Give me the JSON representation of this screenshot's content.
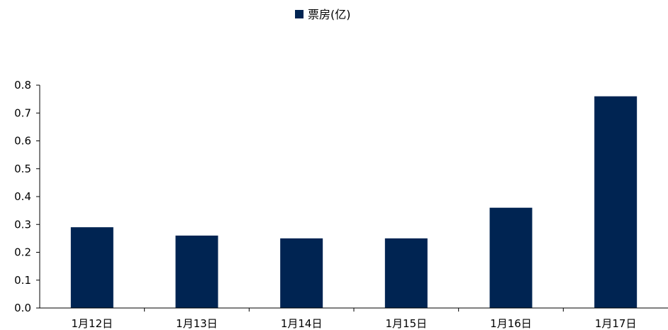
{
  "chart_data": {
    "type": "bar",
    "categories": [
      "1月12日",
      "1月13日",
      "1月14日",
      "1月15日",
      "1月16日",
      "1月17日"
    ],
    "series": [
      {
        "name": "票房(亿)",
        "values": [
          0.29,
          0.26,
          0.25,
          0.25,
          0.36,
          0.76
        ],
        "color": "#002452"
      }
    ],
    "ylim": [
      0,
      0.8
    ],
    "yticks": [
      "0.0",
      "0.1",
      "0.2",
      "0.3",
      "0.4",
      "0.5",
      "0.6",
      "0.7",
      "0.8"
    ],
    "legend_position": "top-center",
    "grid": false
  }
}
